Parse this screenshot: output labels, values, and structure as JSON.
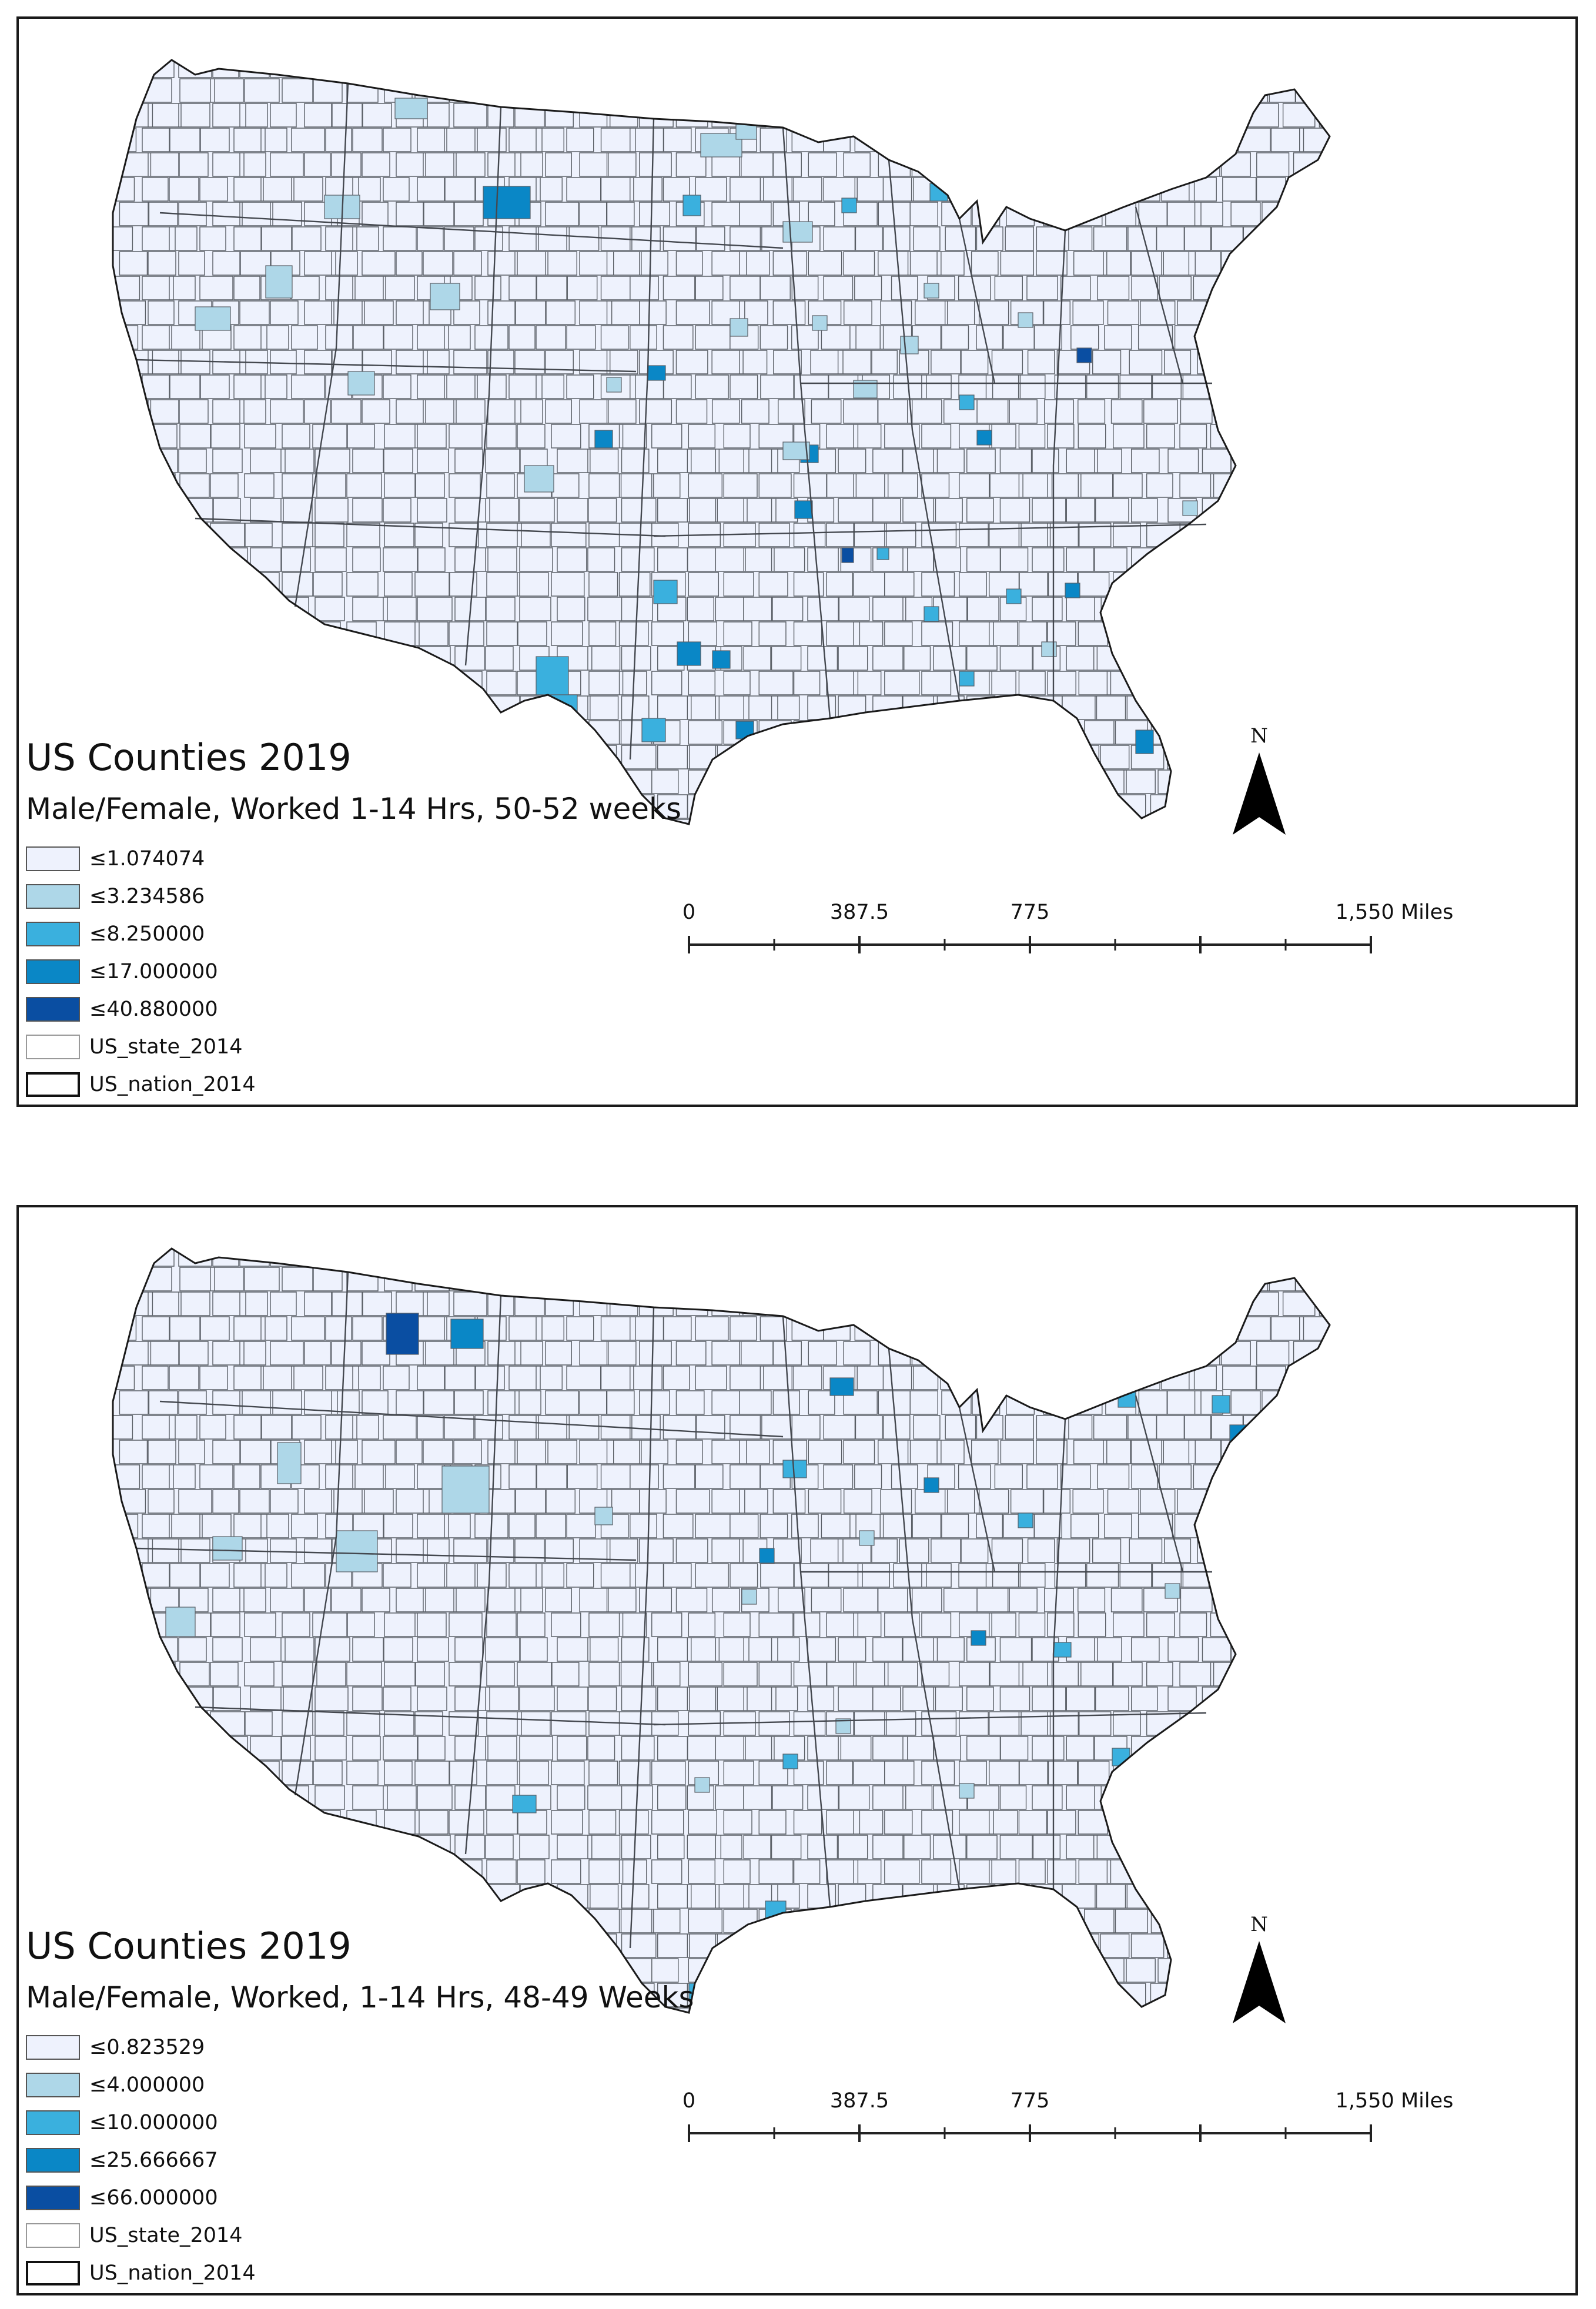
{
  "colors": {
    "classes": [
      "#eef2fd",
      "#aed7e8",
      "#3ab0de",
      "#0a87c6",
      "#0a4ea2"
    ],
    "county_border": "#5a5f66",
    "nation_border": "#1a1a1a"
  },
  "icons": {
    "north_arrow": "north-arrow-icon"
  },
  "maps": [
    {
      "title": "US Counties 2019",
      "subtitle": "Male/Female, Worked 1-14 Hrs, 50-52 weeks",
      "legend": [
        {
          "label": "≤1.074074",
          "class": 0
        },
        {
          "label": "≤3.234586",
          "class": 1
        },
        {
          "label": "≤8.250000",
          "class": 2
        },
        {
          "label": "≤17.000000",
          "class": 3
        },
        {
          "label": "≤40.880000",
          "class": 4
        },
        {
          "label": "US_state_2014",
          "class": "state"
        },
        {
          "label": "US_nation_2014",
          "class": "nation"
        }
      ],
      "scale": {
        "ticks": [
          "0",
          "387.5",
          "775",
          "1,550 Miles"
        ]
      },
      "north_label": "N"
    },
    {
      "title": "US Counties 2019",
      "subtitle": "Male/Female, Worked, 1-14 Hrs, 48-49 Weeks",
      "legend": [
        {
          "label": "≤0.823529",
          "class": 0
        },
        {
          "label": "≤4.000000",
          "class": 1
        },
        {
          "label": "≤10.000000",
          "class": 2
        },
        {
          "label": "≤25.666667",
          "class": 3
        },
        {
          "label": "≤66.000000",
          "class": 4
        },
        {
          "label": "US_state_2014",
          "class": "state"
        },
        {
          "label": "US_nation_2014",
          "class": "nation"
        }
      ],
      "scale": {
        "ticks": [
          "0",
          "387.5",
          "775",
          "1,550 Miles"
        ]
      },
      "north_label": "N"
    }
  ]
}
